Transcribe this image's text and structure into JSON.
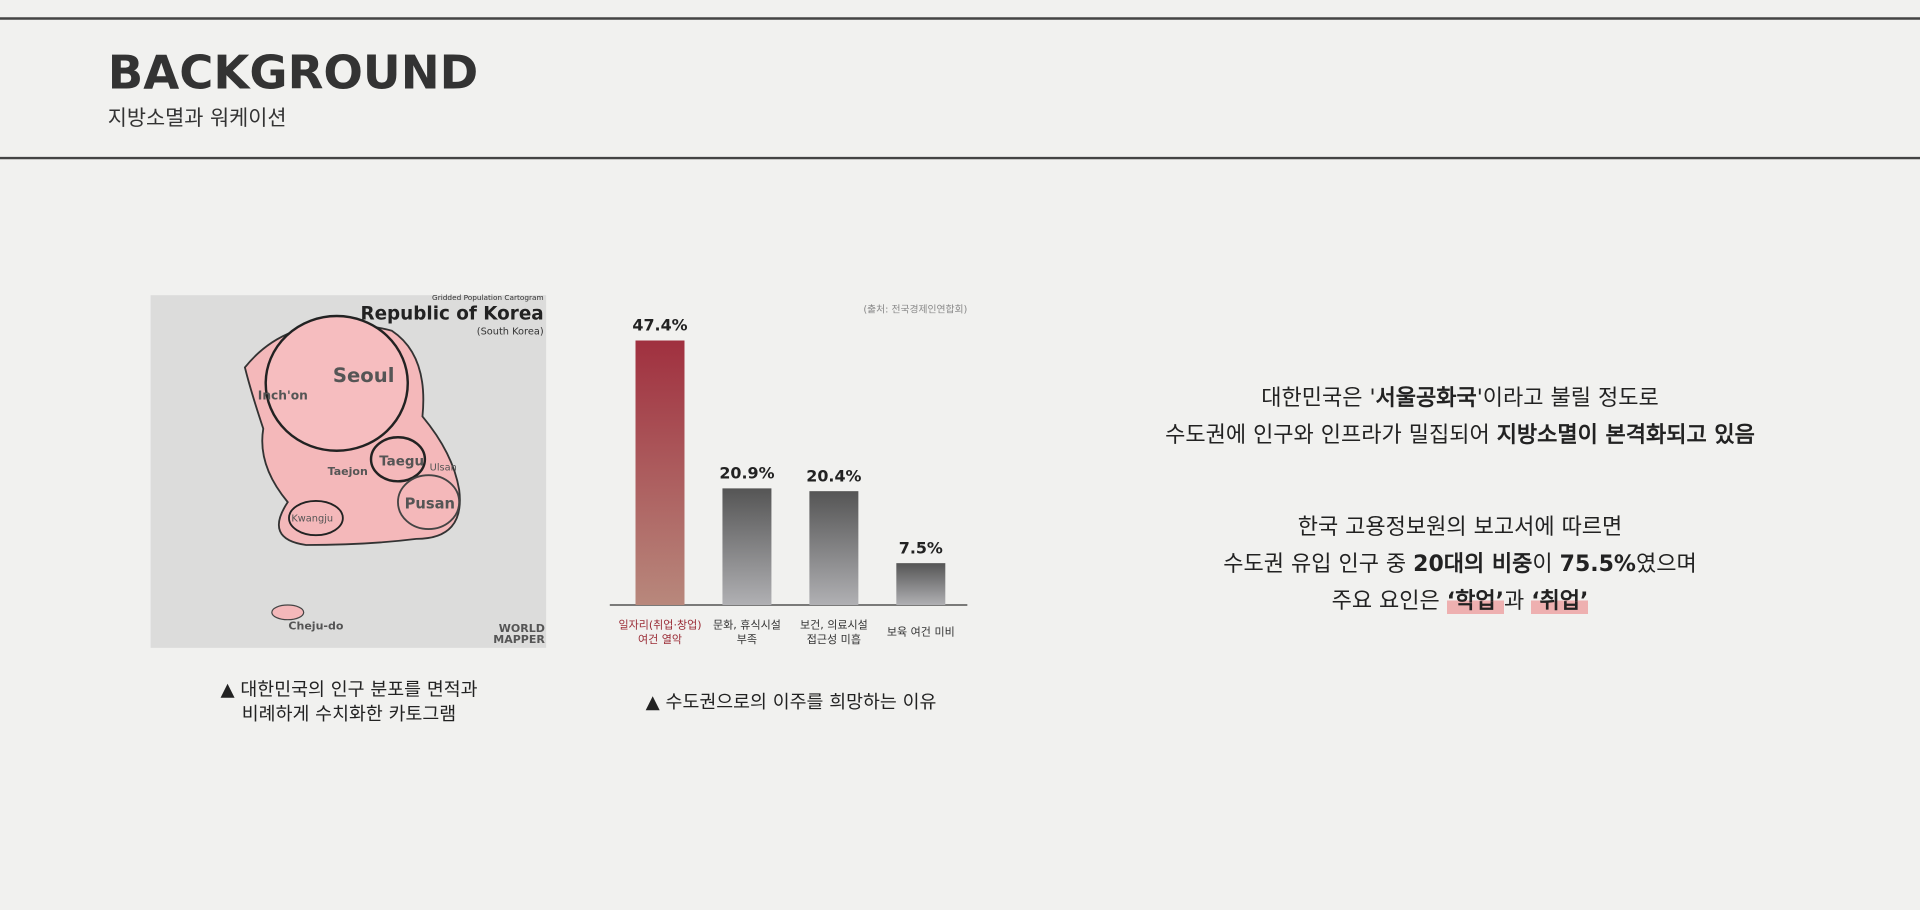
{
  "header": {
    "title": "BACKGROUND",
    "subtitle": "지방소멸과 워케이션"
  },
  "map": {
    "heading": "Gridded Population Cartogram",
    "title": "Republic of Korea",
    "subheading": "(South Korea)",
    "places": [
      "Seoul",
      "Inch'on",
      "Taejon",
      "Taegu",
      "Ulsan",
      "Pusan",
      "Kwangju",
      "Cheju-do"
    ],
    "brand": [
      "WORLD",
      "MAPPER"
    ],
    "caption": [
      "▲ 대한민국의 인구 분포를 면적과",
      "비례하게 수치화한 카토그램"
    ]
  },
  "chart_data": {
    "type": "bar",
    "source": "(출처: 전국경제인연합회)",
    "categories": [
      [
        "일자리(취업·창업)",
        "여건 열악"
      ],
      [
        "문화, 휴식시설",
        "부족"
      ],
      [
        "보건, 의료시설",
        "접근성 미흡"
      ],
      [
        "보육 여건 미비"
      ]
    ],
    "values": [
      47.4,
      20.9,
      20.4,
      7.5
    ],
    "value_labels": [
      "47.4%",
      "20.9%",
      "20.4%",
      "7.5%"
    ],
    "colors": [
      "#9e2f3c",
      "#555555",
      "#555555",
      "#555555"
    ],
    "label_colors": [
      "#9a2b35",
      "#333333",
      "#333333",
      "#333333"
    ],
    "caption": "▲ 수도권으로의 이주를 희망하는 이유"
  },
  "text": {
    "paragraphs": [
      {
        "lines": [
          {
            "segments": [
              {
                "text": "대한민국은 '"
              },
              {
                "text": "서울공화국",
                "style": "bold"
              },
              {
                "text": "'이라고 불릴 정도로"
              }
            ]
          },
          {
            "segments": [
              {
                "text": "수도권에 인구와 인프라가 밀집되어 "
              },
              {
                "text": "지방소멸이 본격화되고 있음",
                "style": "bold"
              }
            ]
          }
        ]
      },
      {
        "lines": [
          {
            "segments": [
              {
                "text": "한국 고용정보원의 보고서에 따르면"
              }
            ]
          },
          {
            "segments": [
              {
                "text": "수도권 유입 인구 중 "
              },
              {
                "text": "20대의 비중",
                "style": "bold"
              },
              {
                "text": "이 "
              },
              {
                "text": "75.5%",
                "style": "bold"
              },
              {
                "text": "였으며"
              }
            ]
          },
          {
            "segments": [
              {
                "text": "주요 요인은 "
              },
              {
                "text": "‘학업’",
                "style": "highlight"
              },
              {
                "text": "과 "
              },
              {
                "text": "‘취업’",
                "style": "highlight"
              }
            ]
          }
        ]
      }
    ]
  }
}
